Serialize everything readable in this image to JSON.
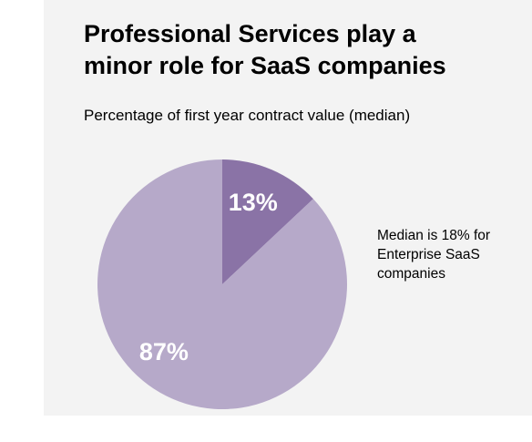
{
  "title_lines": [
    "Professional Services play a",
    "minor role for SaaS companies"
  ],
  "subtitle": "Percentage of first year contract value (median)",
  "annotation_lines": [
    "Median is 18% for",
    "Enterprise SaaS",
    "companies"
  ],
  "chart_data": {
    "type": "pie",
    "title": "Professional Services play a minor role for SaaS companies",
    "subtitle": "Percentage of first year contract value (median)",
    "slices": [
      {
        "value": 13,
        "label": "13%",
        "color": "#8a73a6"
      },
      {
        "value": 87,
        "label": "87%",
        "color": "#b6a9c9"
      }
    ],
    "start_angle_deg": 0,
    "direction": "clockwise",
    "annotation": "Median is 18% for Enterprise SaaS companies"
  }
}
